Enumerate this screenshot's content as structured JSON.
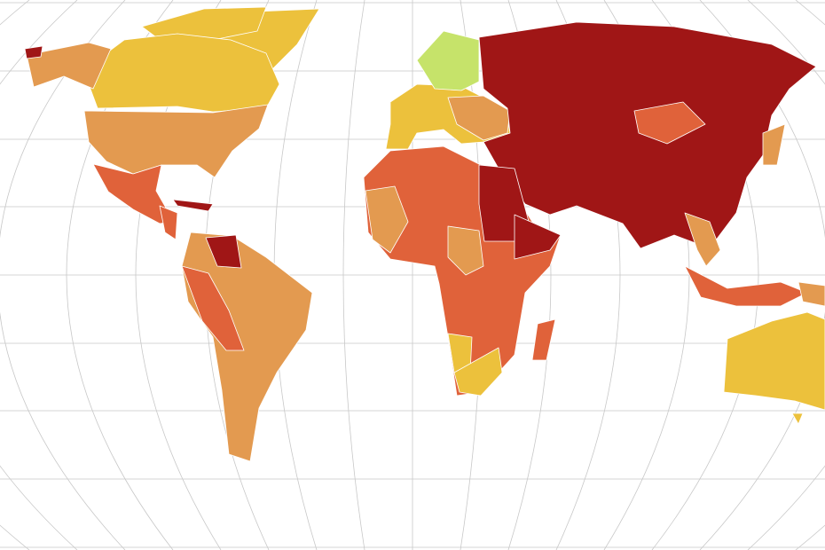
{
  "map": {
    "projection": "Robinson",
    "graticule": true,
    "colors": {
      "very_serious": "#a01616",
      "difficult": "#e0623a",
      "problematic": "#e39a50",
      "satisfactory": "#ecc13c",
      "good": "#c6e36a"
    }
  }
}
